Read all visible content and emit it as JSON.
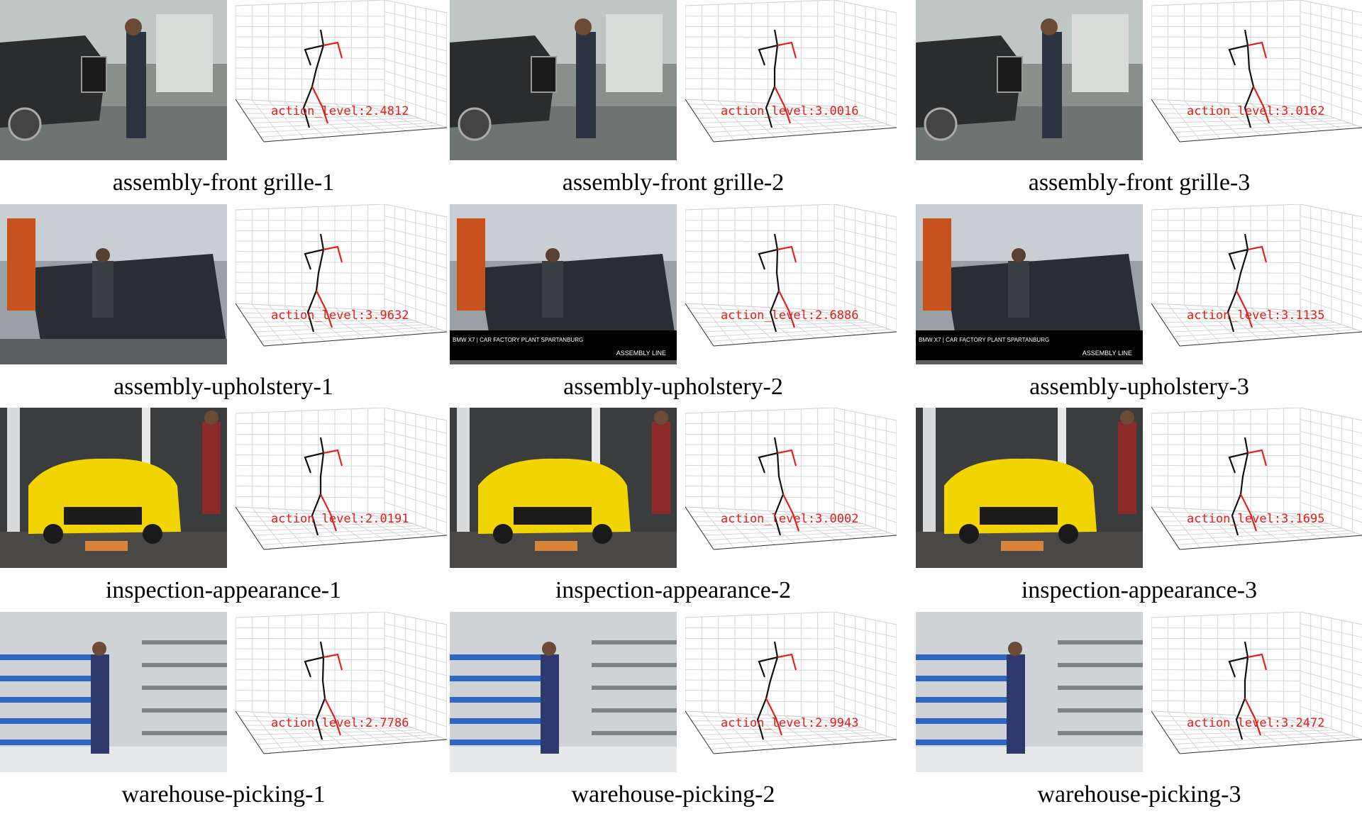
{
  "figure": {
    "panels": [
      {
        "caption": "assembly-front grille-1",
        "action_label": "action_level:2.4812",
        "scene": "car-assembly",
        "overlay": []
      },
      {
        "caption": "assembly-front grille-2",
        "action_label": "action_level:3.0016",
        "scene": "car-assembly",
        "overlay": []
      },
      {
        "caption": "assembly-front grille-3",
        "action_label": "action_level:3.0162",
        "scene": "car-assembly",
        "overlay": []
      },
      {
        "caption": "assembly-upholstery-1",
        "action_label": "action_level:3.9632",
        "scene": "upholstery",
        "overlay": []
      },
      {
        "caption": "assembly-upholstery-2",
        "action_label": "action_level:2.6886",
        "scene": "upholstery",
        "overlay": [
          "BMW X7 | CAR FACTORY PLANT SPARTANBURG",
          "ASSEMBLY LINE"
        ]
      },
      {
        "caption": "assembly-upholstery-3",
        "action_label": "action_level:3.1135",
        "scene": "upholstery",
        "overlay": [
          "BMW X7 | CAR FACTORY PLANT SPARTANBURG",
          "ASSEMBLY LINE"
        ]
      },
      {
        "caption": "inspection-appearance-1",
        "action_label": "action_level:2.0191",
        "scene": "yellow-car",
        "overlay": []
      },
      {
        "caption": "inspection-appearance-2",
        "action_label": "action_level:3.0002",
        "scene": "yellow-car",
        "overlay": []
      },
      {
        "caption": "inspection-appearance-3",
        "action_label": "action_level:3.1695",
        "scene": "yellow-car",
        "overlay": []
      },
      {
        "caption": "warehouse-picking-1",
        "action_label": "action_level:2.7786",
        "scene": "warehouse",
        "overlay": []
      },
      {
        "caption": "warehouse-picking-2",
        "action_label": "action_level:2.9943",
        "scene": "warehouse",
        "overlay": []
      },
      {
        "caption": "warehouse-picking-3",
        "action_label": "action_level:3.2472",
        "scene": "warehouse",
        "overlay": []
      }
    ],
    "colors": {
      "pose_left": "#111111",
      "pose_right": "#e02020",
      "label": "#e02020"
    }
  }
}
